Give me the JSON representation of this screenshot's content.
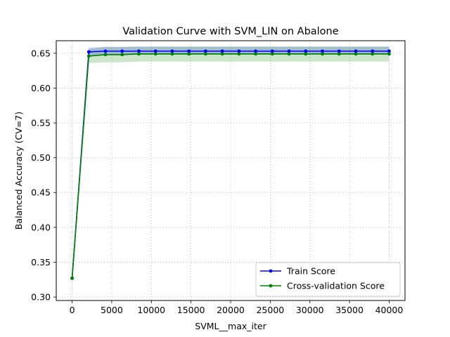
{
  "chart_data": {
    "type": "line",
    "title": "Validation Curve with SVM_LIN on Abalone",
    "xlabel": "SVML__max_iter",
    "ylabel": "Balanced Accuracy (CV=7)",
    "xlim": [
      -2000,
      42000
    ],
    "ylim": [
      0.295,
      0.668
    ],
    "xticks": [
      0,
      5000,
      10000,
      15000,
      20000,
      25000,
      30000,
      35000,
      40000
    ],
    "xtick_labels": [
      "0",
      "5000",
      "10000",
      "15000",
      "20000",
      "25000",
      "30000",
      "35000",
      "40000"
    ],
    "yticks": [
      0.3,
      0.35,
      0.4,
      0.45,
      0.5,
      0.55,
      0.6,
      0.65
    ],
    "ytick_labels": [
      "0.30",
      "0.35",
      "0.40",
      "0.45",
      "0.50",
      "0.55",
      "0.60",
      "0.65"
    ],
    "grid": true,
    "legend_position": "bottom-right",
    "x": [
      1,
      2106,
      4211,
      6316,
      8421,
      10527,
      12632,
      14737,
      16842,
      18948,
      21053,
      23158,
      25263,
      27369,
      29474,
      31579,
      33684,
      35790,
      37895,
      40000
    ],
    "series": [
      {
        "name": "Train Score",
        "color": "#0000ff",
        "values": [
          0.327,
          0.652,
          0.653,
          0.653,
          0.653,
          0.653,
          0.653,
          0.653,
          0.653,
          0.653,
          0.653,
          0.653,
          0.653,
          0.653,
          0.653,
          0.653,
          0.653,
          0.653,
          0.653,
          0.653
        ],
        "band_low": [
          0.326,
          0.645,
          0.648,
          0.648,
          0.648,
          0.648,
          0.648,
          0.648,
          0.648,
          0.648,
          0.648,
          0.648,
          0.648,
          0.648,
          0.648,
          0.648,
          0.648,
          0.648,
          0.648,
          0.648
        ],
        "band_high": [
          0.328,
          0.658,
          0.659,
          0.659,
          0.659,
          0.659,
          0.659,
          0.659,
          0.659,
          0.659,
          0.659,
          0.659,
          0.659,
          0.659,
          0.659,
          0.659,
          0.659,
          0.659,
          0.659,
          0.659
        ]
      },
      {
        "name": "Cross-validation Score",
        "color": "#008000",
        "values": [
          0.327,
          0.646,
          0.648,
          0.648,
          0.649,
          0.649,
          0.649,
          0.649,
          0.649,
          0.649,
          0.649,
          0.649,
          0.649,
          0.649,
          0.649,
          0.649,
          0.649,
          0.649,
          0.649,
          0.649
        ],
        "band_low": [
          0.315,
          0.636,
          0.637,
          0.637,
          0.638,
          0.638,
          0.638,
          0.638,
          0.638,
          0.638,
          0.638,
          0.638,
          0.638,
          0.638,
          0.638,
          0.638,
          0.638,
          0.638,
          0.638,
          0.638
        ],
        "band_high": [
          0.338,
          0.656,
          0.659,
          0.659,
          0.66,
          0.66,
          0.66,
          0.66,
          0.66,
          0.66,
          0.66,
          0.66,
          0.66,
          0.66,
          0.66,
          0.66,
          0.66,
          0.66,
          0.66,
          0.66
        ]
      }
    ]
  }
}
